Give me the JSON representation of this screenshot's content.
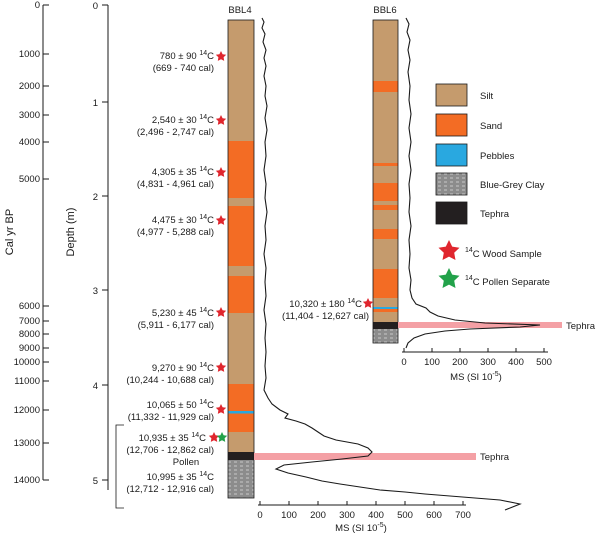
{
  "cal_axis": {
    "label": "Cal  yr  BP",
    "ticks": [
      "0",
      "1000",
      "2000",
      "3000",
      "4000",
      "5000",
      "6000",
      "7000",
      "8000",
      "9000",
      "10000",
      "11000",
      "12000",
      "13000",
      "14000"
    ]
  },
  "depth_axis": {
    "label": "Depth (m)",
    "ticks": [
      "0",
      "1",
      "2",
      "3",
      "4",
      "5"
    ]
  },
  "cores": {
    "bbl4": {
      "name": "BBL4",
      "tephra_label": "Tephra",
      "pollen_label": "Pollen",
      "ms_axis": {
        "label": "MS (SI 10",
        "label_exp": "-5",
        "label_close": ")",
        "ticks": [
          "0",
          "100",
          "200",
          "300",
          "400",
          "500",
          "600",
          "700"
        ]
      },
      "dates": [
        {
          "age": "780 ± 90 ",
          "sup": "14",
          "unit": "C",
          "cal": "(669 - 740 cal)",
          "marker": "wood"
        },
        {
          "age": "2,540 ± 30 ",
          "sup": "14",
          "unit": "C",
          "cal": "(2,496 - 2,747 cal)",
          "marker": "wood"
        },
        {
          "age": "4,305 ± 35 ",
          "sup": "14",
          "unit": "C",
          "cal": "(4,831 - 4,961 cal)",
          "marker": "wood"
        },
        {
          "age": "4,475 ± 30 ",
          "sup": "14",
          "unit": "C",
          "cal": "(4,977 - 5,288 cal)",
          "marker": "wood"
        },
        {
          "age": "5,230 ± 45 ",
          "sup": "14",
          "unit": "C",
          "cal": "(5,911 - 6,177 cal)",
          "marker": "wood"
        },
        {
          "age": "9,270 ± 90 ",
          "sup": "14",
          "unit": "C",
          "cal": "(10,244 - 10,688 cal)",
          "marker": "wood"
        },
        {
          "age": "10,065 ± 50 ",
          "sup": "14",
          "unit": "C",
          "cal": "(11,332 -  11,929 cal)",
          "marker": "wood"
        },
        {
          "age": "10,935 ± 35 ",
          "sup": "14",
          "unit": "C",
          "cal": "(12,706 - 12,862 cal)",
          "marker": "both"
        },
        {
          "age": "10,995 ± 35 ",
          "sup": "14",
          "unit": "C",
          "cal": "(12,712 - 12,916 cal)",
          "marker": "none"
        }
      ]
    },
    "bbl6": {
      "name": "BBL6",
      "tephra_label": "Tephra",
      "ms_axis": {
        "label": "MS (SI 10",
        "label_exp": "-5",
        "label_close": ")",
        "ticks": [
          "0",
          "100",
          "200",
          "300",
          "400",
          "500"
        ]
      },
      "dates": [
        {
          "age": "10,320 ± 180 ",
          "sup": "14",
          "unit": "C",
          "cal": "(11,404 - 12,627 cal)",
          "marker": "wood"
        }
      ]
    }
  },
  "legend": {
    "items": [
      {
        "label": "Silt",
        "color": "#c59b6d"
      },
      {
        "label": "Sand",
        "color": "#f36c24"
      },
      {
        "label": "Pebbles",
        "color": "#29a8e0"
      },
      {
        "label": "Blue-Grey Clay",
        "color": "#8c8c8c"
      },
      {
        "label": "Tephra",
        "color": "#231f20"
      }
    ],
    "wood": {
      "sup": "14",
      "text": "C Wood Sample",
      "color": "#e0262e"
    },
    "pollen": {
      "sup": "14",
      "text": "C Pollen Separate",
      "color": "#22a24a"
    }
  },
  "colors": {
    "silt": "#c59b6d",
    "sand": "#f36c24",
    "pebbles": "#29a8e0",
    "clay": "#8c8c8c",
    "tephra": "#231f20",
    "tephra_band": "#f4a0a5",
    "wood_star": "#e0262e",
    "pollen_star": "#22a24a"
  }
}
